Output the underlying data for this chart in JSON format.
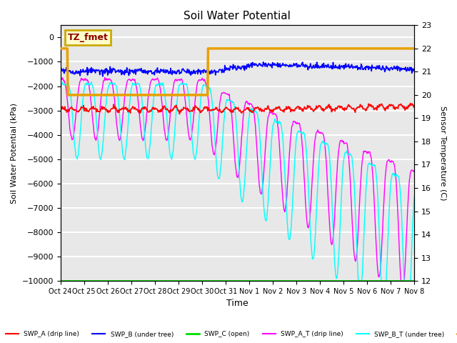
{
  "title": "Soil Water Potential",
  "xlabel": "Time",
  "ylabel_left": "Soil Water Potential (kPa)",
  "ylabel_right": "Sensor Temperature (C)",
  "ylim_left": [
    -10000,
    500
  ],
  "ylim_right": [
    12.0,
    23.0
  ],
  "yticks_left": [
    0,
    -1000,
    -2000,
    -3000,
    -4000,
    -5000,
    -6000,
    -7000,
    -8000,
    -9000,
    -10000
  ],
  "yticks_right": [
    12.0,
    13.0,
    14.0,
    15.0,
    16.0,
    17.0,
    18.0,
    19.0,
    20.0,
    21.0,
    22.0,
    23.0
  ],
  "xtick_labels": [
    "Oct 24",
    "Oct 25",
    "Oct 26",
    "Oct 27",
    "Oct 28",
    "Oct 29",
    "Oct 30",
    "Oct 31",
    "Nov 1",
    "Nov 2",
    "Nov 3",
    "Nov 4",
    "Nov 5",
    "Nov 6",
    "Nov 7",
    "Nov 8"
  ],
  "colors": {
    "SWP_A": "red",
    "SWP_B": "blue",
    "SWP_C": "#00dd00",
    "SWP_A_T": "magenta",
    "SWP_B_T": "cyan",
    "SWP_temp": "#e8a000"
  },
  "annotation_box": {
    "text": "TZ_fmet",
    "facecolor": "#ffffcc",
    "edgecolor": "#ccaa00"
  },
  "background_color": "#e8e8e8",
  "grid_color": "white"
}
